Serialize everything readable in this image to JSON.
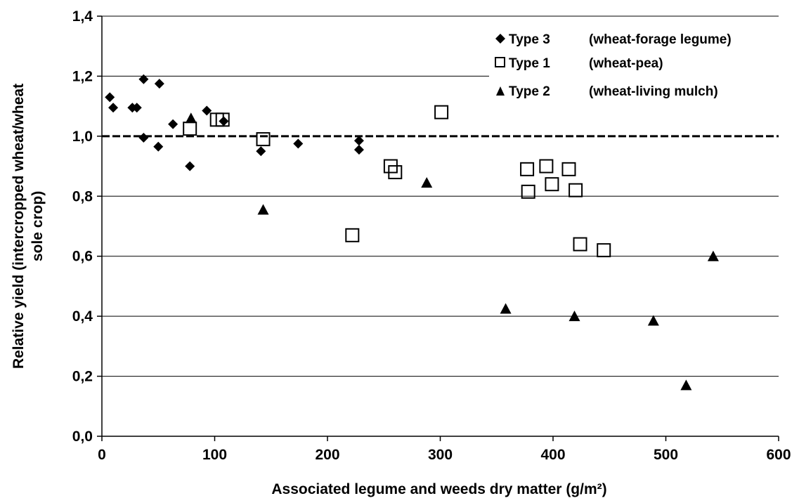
{
  "chart_data": {
    "type": "scatter",
    "title": "",
    "xlabel": "Associated legume and weeds dry matter (g/m²)",
    "ylabel_lines": [
      "Relative yield (intercropped wheat/wheat",
      "sole crop)"
    ],
    "xlim": [
      0,
      600
    ],
    "ylim": [
      0,
      1.4
    ],
    "x_ticks": [
      0,
      100,
      200,
      300,
      400,
      500,
      600
    ],
    "x_tick_labels": [
      "0",
      "100",
      "200",
      "300",
      "400",
      "500",
      "600"
    ],
    "y_ticks": [
      0,
      0.2,
      0.4,
      0.6,
      0.8,
      1.0,
      1.2,
      1.4
    ],
    "y_tick_labels": [
      "0,0",
      "0,2",
      "0,4",
      "0,6",
      "0,8",
      "1,0",
      "1,2",
      "1,4"
    ],
    "grid": "horizontal",
    "reference_line": {
      "y": 1.0,
      "style": "dashed"
    },
    "legend_position": "top-right",
    "series": [
      {
        "name": "Type 3",
        "description": "(wheat-forage legume)",
        "marker": "diamond",
        "color": "#000000",
        "points": [
          [
            7,
            1.13
          ],
          [
            10,
            1.095
          ],
          [
            27,
            1.095
          ],
          [
            31,
            1.095
          ],
          [
            37,
            1.19
          ],
          [
            37,
            0.995
          ],
          [
            51,
            1.175
          ],
          [
            50,
            0.965
          ],
          [
            63,
            1.04
          ],
          [
            78,
            0.9
          ],
          [
            93,
            1.085
          ],
          [
            108,
            1.05
          ],
          [
            141,
            0.95
          ],
          [
            174,
            0.975
          ],
          [
            228,
            0.985
          ],
          [
            228,
            0.955
          ]
        ]
      },
      {
        "name": "Type 1",
        "description": "(wheat-pea)",
        "marker": "square-open",
        "color": "#000000",
        "points": [
          [
            78,
            1.025
          ],
          [
            102,
            1.055
          ],
          [
            107,
            1.055
          ],
          [
            143,
            0.99
          ],
          [
            222,
            0.67
          ],
          [
            256,
            0.9
          ],
          [
            260,
            0.88
          ],
          [
            301,
            1.08
          ],
          [
            377,
            0.89
          ],
          [
            378,
            0.815
          ],
          [
            394,
            0.9
          ],
          [
            399,
            0.84
          ],
          [
            414,
            0.89
          ],
          [
            420,
            0.82
          ],
          [
            424,
            0.64
          ],
          [
            445,
            0.62
          ]
        ]
      },
      {
        "name": "Type 2",
        "description": "(wheat-living mulch)",
        "marker": "triangle",
        "color": "#000000",
        "points": [
          [
            79,
            1.06
          ],
          [
            143,
            0.755
          ],
          [
            288,
            0.845
          ],
          [
            358,
            0.425
          ],
          [
            419,
            0.4
          ],
          [
            489,
            0.385
          ],
          [
            518,
            0.17
          ],
          [
            542,
            0.6
          ]
        ]
      }
    ]
  }
}
